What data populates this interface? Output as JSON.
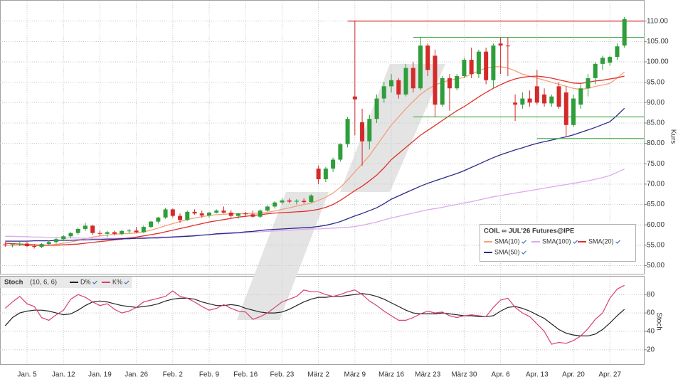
{
  "chart_data": [
    {
      "type": "candlestick",
      "title": "COIL ∞ JUL'26 Futures@IPE",
      "ylabel": "Kurs",
      "ylim": [
        48,
        115
      ],
      "yticks": [
        {
          "value": 50,
          "label": "50.00"
        },
        {
          "value": 55,
          "label": "55.00"
        },
        {
          "value": 60,
          "label": "60.00"
        },
        {
          "value": 65,
          "label": "65.00"
        },
        {
          "value": 70,
          "label": "70.00"
        },
        {
          "value": 75,
          "label": "75.00"
        },
        {
          "value": 80,
          "label": "80.00"
        },
        {
          "value": 85,
          "label": "85.00"
        },
        {
          "value": 90,
          "label": "90.00"
        },
        {
          "value": 95,
          "label": "95.00"
        },
        {
          "value": 100,
          "label": "100.00"
        },
        {
          "value": 105,
          "label": "105.00"
        },
        {
          "value": 110,
          "label": "110.00"
        }
      ],
      "grid": true,
      "up_color": "#2e9e3a",
      "down_color": "#d42a2a",
      "open": [
        55.2,
        55.0,
        55.2,
        55.4,
        54.8,
        54.6,
        55.3,
        55.8,
        56.5,
        57.2,
        58.0,
        59.0,
        59.8,
        58.0,
        57.8,
        58.2,
        57.8,
        58.5,
        58.6,
        58.2,
        59.5,
        60.8,
        61.8,
        63.8,
        62.2,
        61.2,
        63.2,
        62.8,
        62.3,
        63.0,
        63.5,
        63.0,
        62.2,
        62.8,
        62.6,
        62.0,
        63.5,
        64.5,
        65.5,
        66.0,
        65.7,
        65.9,
        65.6,
        73.8,
        71.2,
        73.8,
        76.0,
        79.8,
        91.5,
        85.2,
        80.5,
        86.0,
        91.0,
        94.0,
        95.5,
        92.0,
        98.5,
        93.5,
        104.0,
        101.5,
        89.5,
        96.0,
        93.5,
        96.5,
        100.5,
        97.0,
        102.5,
        95.5,
        104.5,
        104.0,
        90.0,
        89.5,
        91.0,
        94.0,
        92.0,
        89.8,
        94.0,
        92.5,
        84.5,
        89.5,
        93.5,
        96.0,
        99.5,
        99.8,
        101.2,
        104.0
      ],
      "high": [
        55.8,
        55.5,
        56.0,
        55.8,
        55.3,
        55.5,
        56.2,
        56.8,
        57.5,
        58.2,
        59.3,
        60.5,
        60.0,
        58.6,
        58.5,
        58.6,
        58.8,
        59.0,
        59.5,
        59.8,
        61.0,
        62.0,
        64.2,
        64.0,
        62.8,
        63.5,
        63.8,
        63.5,
        63.2,
        63.8,
        64.5,
        63.6,
        63.0,
        63.2,
        63.5,
        63.8,
        64.8,
        65.8,
        66.5,
        66.5,
        66.3,
        66.5,
        67.5,
        74.5,
        74.2,
        76.5,
        80.0,
        86.5,
        110.0,
        88.5,
        87.0,
        92.0,
        95.0,
        97.0,
        96.0,
        99.5,
        100.0,
        106.0,
        104.5,
        103.0,
        96.5,
        97.0,
        97.0,
        101.0,
        103.5,
        103.0,
        103.5,
        104.5,
        106.0,
        106.0,
        92.0,
        92.5,
        93.0,
        98.0,
        93.5,
        92.0,
        95.0,
        94.0,
        92.0,
        94.5,
        97.0,
        100.0,
        101.5,
        101.5,
        104.5,
        111.0
      ],
      "low": [
        54.6,
        54.5,
        54.8,
        54.5,
        54.2,
        54.3,
        55.0,
        55.4,
        56.0,
        56.8,
        57.6,
        58.5,
        57.5,
        57.2,
        57.0,
        57.4,
        57.4,
        58.0,
        58.0,
        58.0,
        59.2,
        60.3,
        61.5,
        61.8,
        60.5,
        61.0,
        62.5,
        61.8,
        61.8,
        62.8,
        62.8,
        61.8,
        61.5,
        62.2,
        61.8,
        61.6,
        63.2,
        64.0,
        65.0,
        65.3,
        65.0,
        65.2,
        65.4,
        70.0,
        70.5,
        73.0,
        75.5,
        79.0,
        82.0,
        74.5,
        78.5,
        85.0,
        90.0,
        92.5,
        91.0,
        91.5,
        92.5,
        93.0,
        96.5,
        86.5,
        89.0,
        88.0,
        93.0,
        96.0,
        96.0,
        96.0,
        94.5,
        93.5,
        97.0,
        96.5,
        85.5,
        88.5,
        89.0,
        89.5,
        89.0,
        89.0,
        88.5,
        81.5,
        84.0,
        88.5,
        91.5,
        94.5,
        98.0,
        99.0,
        100.5,
        103.5
      ],
      "close": [
        55.0,
        55.2,
        55.4,
        54.8,
        54.6,
        55.3,
        55.8,
        56.5,
        57.2,
        58.0,
        59.0,
        59.8,
        58.0,
        57.8,
        58.2,
        57.8,
        58.5,
        58.6,
        58.2,
        59.5,
        60.8,
        61.8,
        63.8,
        62.2,
        61.2,
        63.2,
        62.8,
        62.3,
        63.0,
        63.5,
        63.0,
        62.2,
        62.8,
        62.6,
        62.0,
        63.5,
        64.5,
        65.5,
        66.0,
        65.7,
        65.9,
        65.6,
        67.2,
        71.2,
        73.8,
        76.0,
        79.8,
        86.0,
        90.8,
        80.5,
        86.0,
        91.0,
        94.0,
        95.5,
        92.0,
        98.5,
        93.5,
        104.0,
        98.0,
        89.5,
        96.0,
        93.5,
        96.5,
        100.5,
        97.0,
        102.5,
        95.5,
        104.0,
        104.0,
        103.8,
        89.5,
        91.0,
        90.0,
        90.0,
        89.8,
        91.5,
        89.0,
        84.5,
        91.0,
        93.5,
        96.0,
        99.5,
        101.0,
        101.2,
        103.8,
        110.5
      ],
      "series": [
        {
          "name": "SMA(10)",
          "color": "#f4a07a",
          "values": [
            55.0,
            55.0,
            55.0,
            54.9,
            54.9,
            54.9,
            55.0,
            55.2,
            55.5,
            55.8,
            56.2,
            56.6,
            57.0,
            57.3,
            57.5,
            57.7,
            57.8,
            57.9,
            58.0,
            58.3,
            58.7,
            59.2,
            59.8,
            60.3,
            60.8,
            61.3,
            61.7,
            62.0,
            62.3,
            62.5,
            62.6,
            62.7,
            62.7,
            62.8,
            62.8,
            62.9,
            63.1,
            63.4,
            63.8,
            64.2,
            64.6,
            65.0,
            65.3,
            66.0,
            66.8,
            67.8,
            69.2,
            71.0,
            73.0,
            75.0,
            77.0,
            79.5,
            82.0,
            84.5,
            86.5,
            88.5,
            90.3,
            92.0,
            93.3,
            94.3,
            95.0,
            95.5,
            95.8,
            96.2,
            97.0,
            97.8,
            98.5,
            98.8,
            98.8,
            98.5,
            97.8,
            97.0,
            96.5,
            96.0,
            95.5,
            95.0,
            94.5,
            94.0,
            93.5,
            93.2,
            93.5,
            94.0,
            94.3,
            94.7,
            96.0,
            97.5
          ]
        },
        {
          "name": "SMA(100)",
          "color": "#dcaaf0",
          "values": [
            57.2,
            57.2,
            57.1,
            57.1,
            57.0,
            57.0,
            56.9,
            56.9,
            56.8,
            56.8,
            56.8,
            56.7,
            56.7,
            56.7,
            56.7,
            56.7,
            56.8,
            56.8,
            56.8,
            56.9,
            56.9,
            57.0,
            57.0,
            57.1,
            57.2,
            57.3,
            57.4,
            57.5,
            57.6,
            57.7,
            57.8,
            57.9,
            58.0,
            58.1,
            58.2,
            58.3,
            58.4,
            58.5,
            58.6,
            58.7,
            58.8,
            58.9,
            59.0,
            59.0,
            59.1,
            59.2,
            59.3,
            59.4,
            59.6,
            59.9,
            60.3,
            60.7,
            61.2,
            61.7,
            62.1,
            62.5,
            62.9,
            63.3,
            63.7,
            64.0,
            64.3,
            64.7,
            65.0,
            65.4,
            65.7,
            66.1,
            66.5,
            66.9,
            67.2,
            67.5,
            67.8,
            68.1,
            68.4,
            68.7,
            69.0,
            69.3,
            69.6,
            69.9,
            70.2,
            70.5,
            70.8,
            71.2,
            71.6,
            72.1,
            72.9,
            73.7
          ]
        },
        {
          "name": "SMA(20)",
          "color": "#e0302a",
          "values": [
            55.5,
            55.4,
            55.3,
            55.2,
            55.1,
            55.0,
            55.0,
            55.0,
            55.1,
            55.2,
            55.3,
            55.5,
            55.7,
            55.9,
            56.1,
            56.3,
            56.5,
            56.8,
            57.0,
            57.3,
            57.6,
            57.9,
            58.3,
            58.7,
            59.1,
            59.5,
            59.9,
            60.3,
            60.7,
            61.0,
            61.3,
            61.6,
            61.9,
            62.1,
            62.3,
            62.5,
            62.7,
            62.9,
            63.0,
            63.1,
            63.2,
            63.3,
            63.5,
            63.8,
            64.3,
            65.0,
            66.0,
            67.2,
            68.4,
            69.5,
            70.8,
            72.2,
            74.0,
            76.0,
            77.5,
            79.0,
            80.5,
            82.0,
            83.2,
            84.4,
            85.6,
            86.8,
            88.0,
            89.0,
            90.2,
            91.4,
            92.5,
            93.5,
            94.4,
            95.2,
            95.8,
            96.2,
            96.4,
            96.5,
            96.3,
            96.0,
            95.6,
            95.2,
            94.8,
            94.7,
            95.0,
            95.3,
            95.5,
            95.8,
            96.1,
            96.5
          ]
        },
        {
          "name": "SMA(50)",
          "color": "#2a2a8a",
          "values": [
            56.0,
            56.0,
            56.0,
            56.0,
            56.1,
            56.1,
            56.1,
            56.2,
            56.2,
            56.2,
            56.3,
            56.3,
            56.4,
            56.4,
            56.5,
            56.5,
            56.6,
            56.6,
            56.7,
            56.7,
            56.8,
            56.8,
            56.9,
            57.0,
            57.1,
            57.2,
            57.3,
            57.5,
            57.6,
            57.8,
            57.9,
            58.0,
            58.1,
            58.3,
            58.4,
            58.6,
            58.8,
            58.9,
            59.0,
            59.1,
            59.2,
            59.3,
            59.4,
            59.6,
            59.9,
            60.3,
            60.8,
            61.5,
            62.2,
            62.8,
            63.5,
            64.2,
            65.2,
            66.3,
            67.1,
            67.9,
            68.7,
            69.5,
            70.2,
            70.8,
            71.4,
            72.0,
            72.6,
            73.3,
            74.1,
            74.9,
            75.7,
            76.5,
            77.2,
            77.8,
            78.4,
            78.9,
            79.5,
            80.0,
            80.4,
            80.8,
            81.2,
            81.6,
            82.1,
            82.7,
            83.3,
            83.9,
            84.6,
            85.3,
            86.9,
            88.6
          ]
        }
      ],
      "hlines": [
        {
          "value": 110,
          "color": "#d42a2a",
          "from": 47
        },
        {
          "value": 106,
          "color": "#4caf50",
          "from": 56
        },
        {
          "value": 86.5,
          "color": "#4caf50",
          "from": 56
        },
        {
          "value": 81.2,
          "color": "#4caf50",
          "from": 73
        }
      ]
    },
    {
      "type": "line",
      "title": "Stoch",
      "subtitle": "(10, 6, 6)",
      "ylabel": "Stoch",
      "ylim": [
        4.4,
        99.5
      ],
      "yticks": [
        20,
        40,
        60,
        80
      ],
      "grid": true,
      "categories": [
        null,
        null,
        null,
        "Jan. 5",
        null,
        null,
        null,
        null,
        "Jan. 12",
        null,
        null,
        null,
        null,
        "Jan. 19",
        null,
        null,
        null,
        null,
        "Jan. 26",
        null,
        null,
        null,
        null,
        "Feb. 2",
        null,
        null,
        null,
        null,
        "Feb. 9",
        null,
        null,
        null,
        null,
        "Feb. 16",
        null,
        null,
        null,
        null,
        "Feb. 23",
        null,
        null,
        null,
        null,
        "März 2",
        null,
        null,
        null,
        null,
        "März 9",
        null,
        null,
        null,
        null,
        "März 16",
        null,
        null,
        null,
        null,
        "März 23",
        null,
        null,
        null,
        null,
        "März 30",
        null,
        null,
        null,
        null,
        "Apr. 6",
        null,
        null,
        null,
        null,
        "Apr. 13",
        null,
        null,
        null,
        null,
        "Apr. 20",
        null,
        null,
        null,
        null,
        "Apr. 27",
        null,
        null
      ],
      "series": [
        {
          "name": "D%",
          "color": "#222222",
          "values": [
            46,
            55,
            60,
            62,
            63,
            63,
            62,
            60,
            58,
            59,
            63,
            68,
            72,
            73,
            72,
            70,
            68,
            67,
            66,
            67,
            68,
            70,
            73,
            75,
            76,
            76,
            75,
            72,
            70,
            68,
            68,
            69,
            68,
            65,
            63,
            61,
            60,
            60,
            61,
            64,
            68,
            72,
            75,
            77,
            77,
            78,
            78,
            79,
            80,
            81,
            80,
            78,
            75,
            71,
            67,
            63,
            60,
            59,
            59,
            59,
            60,
            59,
            58,
            57,
            57,
            56,
            56,
            57,
            62,
            66,
            67,
            65,
            62,
            58,
            54,
            48,
            42,
            38,
            36,
            35,
            35,
            37,
            42,
            49,
            57,
            64
          ]
        },
        {
          "name": "K%",
          "color": "#d8406e",
          "values": [
            65,
            72,
            78,
            70,
            67,
            55,
            52,
            58,
            63,
            75,
            80,
            77,
            72,
            68,
            70,
            64,
            60,
            62,
            66,
            72,
            74,
            76,
            78,
            84,
            78,
            76,
            72,
            67,
            63,
            65,
            69,
            65,
            62,
            61,
            53,
            56,
            60,
            66,
            72,
            75,
            78,
            85,
            83,
            83,
            80,
            78,
            80,
            83,
            85,
            80,
            73,
            68,
            62,
            57,
            52,
            52,
            55,
            59,
            62,
            60,
            61,
            57,
            55,
            57,
            58,
            57,
            56,
            66,
            74,
            76,
            66,
            60,
            56,
            48,
            40,
            26,
            28,
            27,
            30,
            35,
            43,
            53,
            60,
            76,
            86,
            90
          ]
        }
      ]
    }
  ]
}
